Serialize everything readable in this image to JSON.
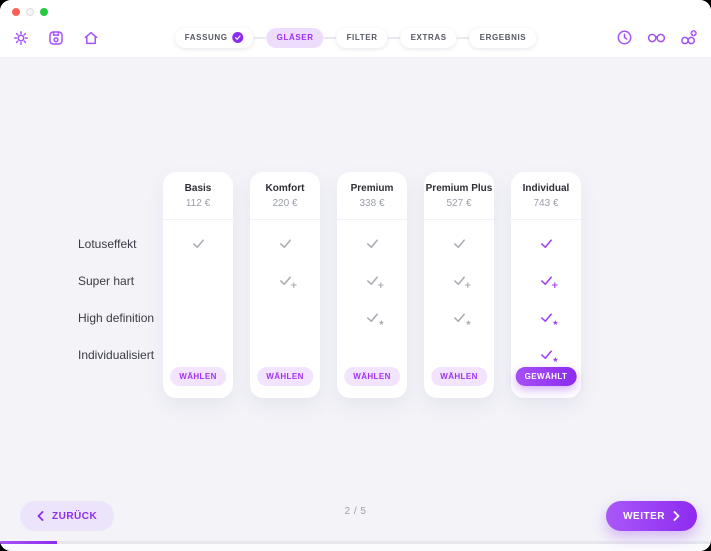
{
  "window": {
    "controls": [
      {
        "key": "close",
        "name": "close"
      },
      {
        "key": "minimize",
        "name": "minimize"
      },
      {
        "key": "zoom",
        "name": "zoom"
      }
    ]
  },
  "toolbar": {
    "left_icons": [
      "settings-icon",
      "save-icon",
      "home-icon"
    ],
    "right_icons": [
      "history-clock-icon",
      "glasses-icon",
      "add-glasses-icon"
    ],
    "steps": [
      {
        "key": "fassung",
        "label": "FASSUNG",
        "state": "done"
      },
      {
        "key": "glaeser",
        "label": "GLÄSER",
        "state": "active"
      },
      {
        "key": "filter",
        "label": "FILTER",
        "state": "default"
      },
      {
        "key": "extras",
        "label": "EXTRAS",
        "state": "default"
      },
      {
        "key": "ergebnis",
        "label": "ERGEBNIS",
        "state": "default"
      }
    ]
  },
  "pricing": {
    "features": [
      "Lotuseffekt",
      "Super hart",
      "High definition",
      "Individualisiert"
    ],
    "tiers": [
      {
        "key": "basis",
        "name": "Basis",
        "price": "112 €",
        "checks": [
          "check",
          "",
          "",
          ""
        ],
        "button": "WÄHLEN",
        "selected": false
      },
      {
        "key": "komfort",
        "name": "Komfort",
        "price": "220 €",
        "checks": [
          "check",
          "check-plus",
          "",
          ""
        ],
        "button": "WÄHLEN",
        "selected": false
      },
      {
        "key": "premium",
        "name": "Premium",
        "price": "338 €",
        "checks": [
          "check",
          "check-plus",
          "check-star",
          ""
        ],
        "button": "WÄHLEN",
        "selected": false
      },
      {
        "key": "premium-plus",
        "name": "Premium Plus",
        "price": "527 €",
        "checks": [
          "check",
          "check-plus",
          "check-star",
          ""
        ],
        "button": "WÄHLEN",
        "selected": false
      },
      {
        "key": "individual",
        "name": "Individual",
        "price": "743 €",
        "checks": [
          "check",
          "check-plus",
          "check-star",
          "check-star"
        ],
        "button": "GEWÄHLT",
        "selected": true
      }
    ]
  },
  "footer": {
    "back_label": "ZURÜCK",
    "counter": "2 / 5",
    "next_label": "WEITER"
  },
  "progress": {
    "percent": 8
  },
  "colors": {
    "accent": "#8d2bf0",
    "accent_light": "#a855f7",
    "active_pill_bg": "#eedcfc",
    "check_gray": "#a7aab2",
    "check_purple": "#9d3bf5",
    "main_bg": "#f3f3f8"
  }
}
